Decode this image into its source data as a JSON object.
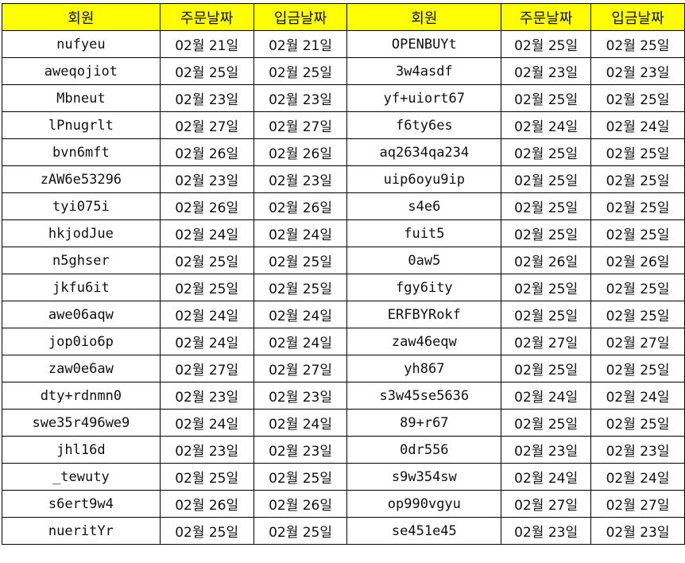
{
  "header": [
    "회원",
    "주문날짜",
    "입금날짜",
    "회원",
    "주문날짜",
    "입금날짜"
  ],
  "header_color": "#ffff00",
  "rows": [
    [
      "nufyeu",
      "02월 21일",
      "02월 21일",
      "OPENBUYt",
      "02월 25일",
      "02월 25일"
    ],
    [
      "aweqojiot",
      "02월 25일",
      "02월 25일",
      "3w4asdf",
      "02월 23일",
      "02월 23일"
    ],
    [
      "Mbneut",
      "02월 23일",
      "02월 23일",
      "yf+uiort67",
      "02월 25일",
      "02월 25일"
    ],
    [
      "lPnugrlt",
      "02월 27일",
      "02월 27일",
      "f6ty6es",
      "02월 24일",
      "02월 24일"
    ],
    [
      "bvn6mft",
      "02월 26일",
      "02월 26일",
      "aq2634qa234",
      "02월 25일",
      "02월 25일"
    ],
    [
      "zAW6e53296",
      "02월 23일",
      "02월 23일",
      "uip6oyu9ip",
      "02월 25일",
      "02월 25일"
    ],
    [
      "tyi075i",
      "02월 26일",
      "02월 26일",
      "s4e6",
      "02월 25일",
      "02월 25일"
    ],
    [
      "hkjodJue",
      "02월 24일",
      "02월 24일",
      "fuit5",
      "02월 25일",
      "02월 25일"
    ],
    [
      "n5ghser",
      "02월 25일",
      "02월 25일",
      "0aw5",
      "02월 26일",
      "02월 26일"
    ],
    [
      "jkfu6it",
      "02월 25일",
      "02월 25일",
      "fgy6ity",
      "02월 25일",
      "02월 25일"
    ],
    [
      "awe06aqw",
      "02월 24일",
      "02월 24일",
      "ERFBYRokf",
      "02월 25일",
      "02월 25일"
    ],
    [
      "jop0io6p",
      "02월 24일",
      "02월 24일",
      "zaw46eqw",
      "02월 27일",
      "02월 27일"
    ],
    [
      "zaw0e6aw",
      "02월 27일",
      "02월 27일",
      "yh867",
      "02월 25일",
      "02월 25일"
    ],
    [
      "dty+rdnmn0",
      "02월 23일",
      "02월 23일",
      "s3w45se5636",
      "02월 24일",
      "02월 24일"
    ],
    [
      "swe35r496we9",
      "02월 24일",
      "02월 24일",
      "89+r67",
      "02월 25일",
      "02월 25일"
    ],
    [
      "jhl16d",
      "02월 23일",
      "02월 23일",
      "0dr556",
      "02월 23일",
      "02월 23일"
    ],
    [
      "_tewuty",
      "02월 25일",
      "02월 25일",
      "s9w354sw",
      "02월 24일",
      "02월 24일"
    ],
    [
      "s6ert9w4",
      "02월 26일",
      "02월 26일",
      "op990vgyu",
      "02월 27일",
      "02월 27일"
    ],
    [
      "nueritYr",
      "02월 25일",
      "02월 25일",
      "se451e45",
      "02월 23일",
      "02월 23일"
    ]
  ]
}
